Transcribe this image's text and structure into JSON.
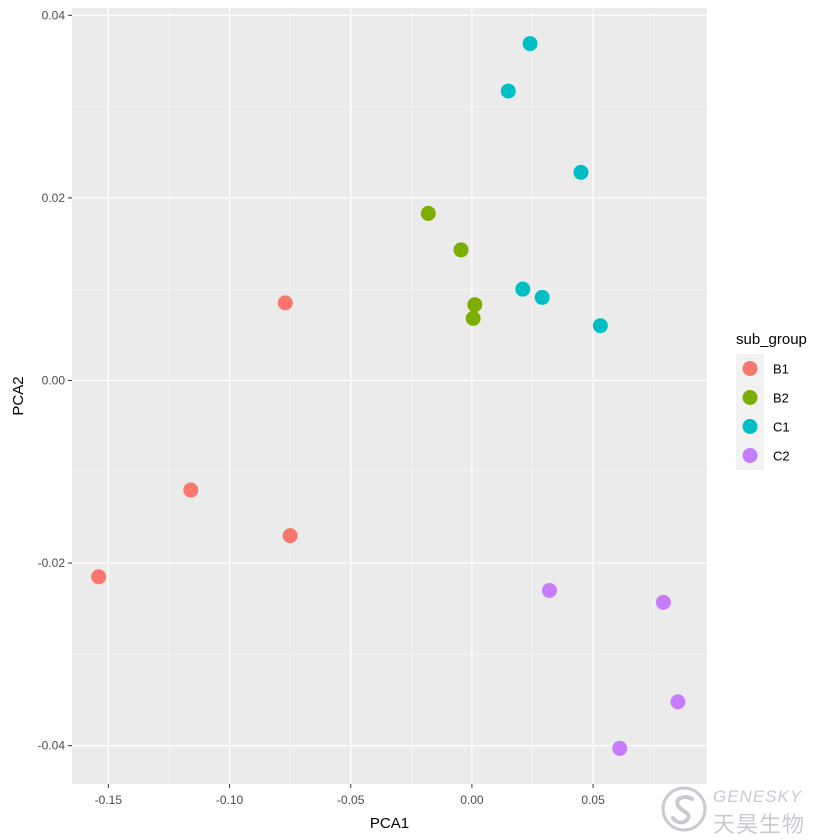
{
  "chart_data": {
    "type": "scatter",
    "xlabel": "PCA1",
    "ylabel": "PCA2",
    "xlim": [
      -0.165,
      0.097
    ],
    "ylim": [
      -0.0442,
      0.0408
    ],
    "x_ticks": [
      -0.15,
      -0.1,
      -0.05,
      0.0,
      0.05
    ],
    "x_tick_labels": [
      "-0.15",
      "-0.10",
      "-0.05",
      "0.00",
      "0.05"
    ],
    "y_ticks": [
      -0.04,
      -0.02,
      0.0,
      0.02,
      0.04
    ],
    "y_tick_labels": [
      "-0.04",
      "-0.02",
      "0.00",
      "0.02",
      "0.04"
    ],
    "grid": true,
    "panel_background": "#ebebeb",
    "legend_title": "sub_group",
    "legend_position": "right",
    "series": [
      {
        "name": "B1",
        "color": "#f8766d",
        "points": [
          [
            -0.077,
            0.0085
          ],
          [
            -0.116,
            -0.012
          ],
          [
            -0.075,
            -0.017
          ],
          [
            -0.154,
            -0.0215
          ]
        ]
      },
      {
        "name": "B2",
        "color": "#7cae00",
        "points": [
          [
            -0.018,
            0.0183
          ],
          [
            -0.0045,
            0.0143
          ],
          [
            0.0012,
            0.0083
          ],
          [
            0.0005,
            0.0068
          ]
        ]
      },
      {
        "name": "C1",
        "color": "#00bfc4",
        "points": [
          [
            0.024,
            0.0369
          ],
          [
            0.015,
            0.0317
          ],
          [
            0.045,
            0.0228
          ],
          [
            0.021,
            0.01
          ],
          [
            0.029,
            0.0091
          ],
          [
            0.053,
            0.006
          ]
        ]
      },
      {
        "name": "C2",
        "color": "#c77cff",
        "points": [
          [
            0.032,
            -0.023
          ],
          [
            0.079,
            -0.0243
          ],
          [
            0.085,
            -0.0352
          ],
          [
            0.061,
            -0.0403
          ]
        ]
      }
    ]
  },
  "watermark": {
    "brand_en": "GENESKY",
    "brand_cn": "天昊生物"
  }
}
